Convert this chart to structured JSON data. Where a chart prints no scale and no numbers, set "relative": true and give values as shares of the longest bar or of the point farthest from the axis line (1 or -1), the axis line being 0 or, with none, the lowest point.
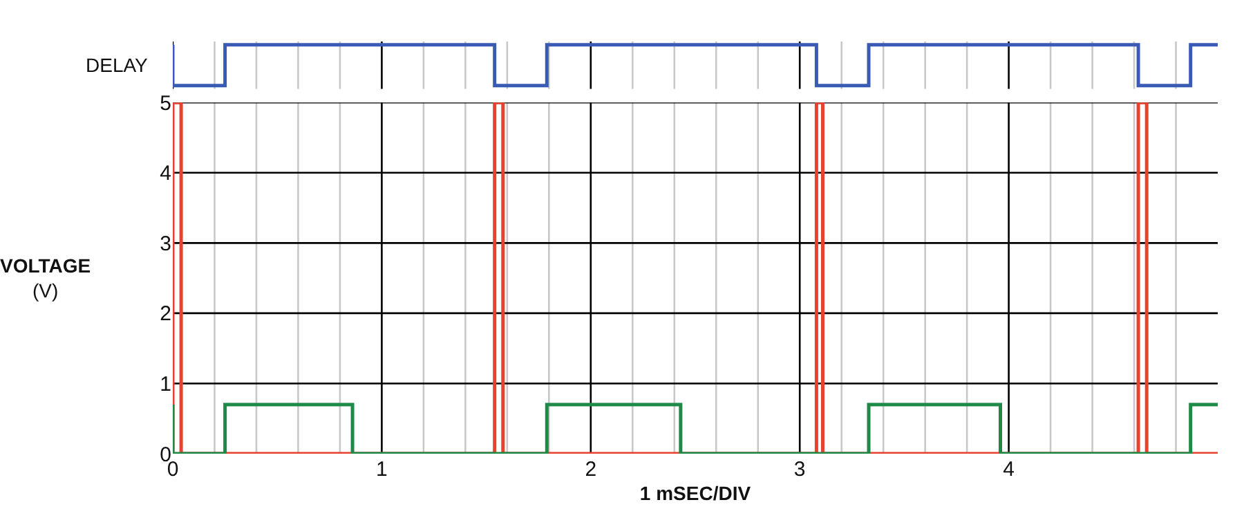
{
  "chart_data": [
    {
      "type": "line",
      "relative": true,
      "ylabel": "DELAY",
      "xlim": [
        0,
        5
      ],
      "xticks": [
        0,
        {
          "value": 0.2,
          "label": null
        },
        {
          "value": 0.4,
          "label": null
        },
        {
          "value": 0.6,
          "label": null
        },
        {
          "value": 0.8,
          "label": null
        },
        1,
        {
          "value": 1.2,
          "label": null
        },
        {
          "value": 1.4,
          "label": null
        },
        {
          "value": 1.6,
          "label": null
        },
        {
          "value": 1.8,
          "label": null
        },
        2,
        {
          "value": 2.2,
          "label": null
        },
        {
          "value": 2.4,
          "label": null
        },
        {
          "value": 2.6,
          "label": null
        },
        {
          "value": 2.8,
          "label": null
        },
        3,
        {
          "value": 3.2,
          "label": null
        },
        {
          "value": 3.4,
          "label": null
        },
        {
          "value": 3.6,
          "label": null
        },
        {
          "value": 3.8,
          "label": null
        },
        4,
        {
          "value": 4.2,
          "label": null
        },
        {
          "value": 4.4,
          "label": null
        },
        {
          "value": 4.6,
          "label": null
        },
        {
          "value": 4.8,
          "label": null
        }
      ],
      "tick_labels": false,
      "grid": "x",
      "marker": "none",
      "line_style": "solid",
      "series": [
        {
          "color": "#3a5bb5",
          "x": [
            0,
            0,
            0.25,
            0.25,
            1.54,
            1.54,
            1.79,
            1.79,
            3.08,
            3.08,
            3.33,
            3.33,
            4.62,
            4.62,
            4.87,
            4.87,
            5
          ],
          "values": [
            1,
            0,
            0,
            1,
            1,
            0,
            0,
            1,
            1,
            0,
            0,
            1,
            1,
            0,
            0,
            1,
            1
          ]
        }
      ]
    },
    {
      "type": "line",
      "xlabel": "1 mSEC/DIV",
      "ylabel": "VOLTAGE\n(V)",
      "xlim": [
        0,
        5
      ],
      "ylim": [
        0,
        5
      ],
      "yticks": [
        0,
        1,
        2,
        3,
        4,
        5
      ],
      "xticks": [
        0,
        {
          "value": 0.2,
          "label": null
        },
        {
          "value": 0.4,
          "label": null
        },
        {
          "value": 0.6,
          "label": null
        },
        {
          "value": 0.8,
          "label": null
        },
        1,
        {
          "value": 1.2,
          "label": null
        },
        {
          "value": 1.4,
          "label": null
        },
        {
          "value": 1.6,
          "label": null
        },
        {
          "value": 1.8,
          "label": null
        },
        2,
        {
          "value": 2.2,
          "label": null
        },
        {
          "value": 2.4,
          "label": null
        },
        {
          "value": 2.6,
          "label": null
        },
        {
          "value": 2.8,
          "label": null
        },
        3,
        {
          "value": 3.2,
          "label": null
        },
        {
          "value": 3.4,
          "label": null
        },
        {
          "value": 3.6,
          "label": null
        },
        {
          "value": 3.8,
          "label": null
        },
        4,
        {
          "value": 4.2,
          "label": null
        },
        {
          "value": 4.4,
          "label": null
        },
        {
          "value": 4.6,
          "label": null
        },
        {
          "value": 4.8,
          "label": null
        }
      ],
      "grid": true,
      "marker": "none",
      "line_style": "solid",
      "series": [
        {
          "color": "#e8412f",
          "x": [
            0,
            0,
            0.04,
            0.04,
            1.54,
            1.54,
            1.58,
            1.58,
            3.08,
            3.08,
            3.11,
            3.11,
            4.62,
            4.62,
            4.66,
            4.66,
            5
          ],
          "values": [
            0,
            5,
            5,
            0,
            0,
            5,
            5,
            0,
            0,
            5,
            5,
            0,
            0,
            5,
            5,
            0,
            0
          ]
        },
        {
          "color": "#1f8a47",
          "x": [
            0,
            0,
            0.25,
            0.25,
            0.86,
            0.86,
            1.79,
            1.79,
            2.43,
            2.43,
            3.33,
            3.33,
            3.96,
            3.96,
            4.87,
            4.87,
            5
          ],
          "values": [
            0.7,
            0,
            0,
            0.7,
            0.7,
            0,
            0,
            0.7,
            0.7,
            0,
            0,
            0.7,
            0.7,
            0,
            0,
            0.7,
            0.7
          ]
        }
      ]
    }
  ]
}
